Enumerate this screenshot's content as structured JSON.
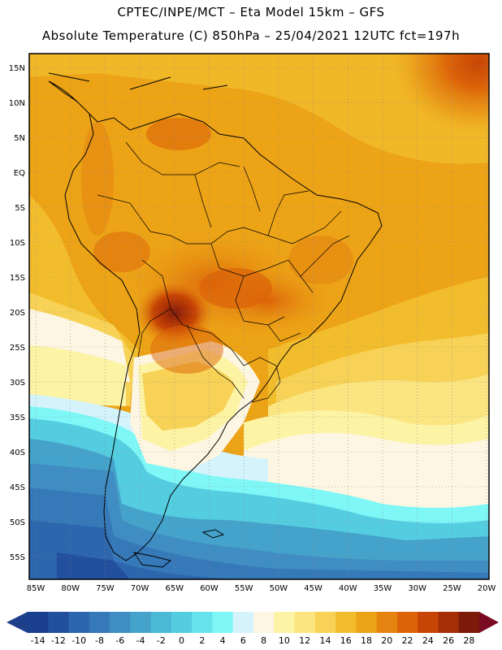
{
  "header": {
    "line1": "CPTEC/INPE/MCT –  Eta Model 15km – GFS",
    "line2": "Absolute Temperature (C) 850hPa – 25/04/2021 12UTC fct=197h"
  },
  "map": {
    "latitude_labels": [
      "15N",
      "10N",
      "5N",
      "EQ",
      "5S",
      "10S",
      "15S",
      "20S",
      "25S",
      "30S",
      "35S",
      "40S",
      "45S",
      "50S",
      "55S"
    ],
    "longitude_labels": [
      "85W",
      "80W",
      "75W",
      "70W",
      "65W",
      "60W",
      "55W",
      "50W",
      "45W",
      "40W",
      "35W",
      "30W",
      "25W",
      "20W"
    ],
    "region": "South America"
  },
  "colorbar": {
    "labels": [
      "-14",
      "-12",
      "-10",
      "-8",
      "-6",
      "-4",
      "-2",
      "0",
      "2",
      "4",
      "6",
      "8",
      "10",
      "12",
      "14",
      "16",
      "18",
      "20",
      "22",
      "24",
      "26",
      "28"
    ],
    "colors": [
      "#1b3f8f",
      "#23509e",
      "#2c66ad",
      "#3679b9",
      "#3f8dc3",
      "#45a3cb",
      "#4ab8d6",
      "#55cde0",
      "#66e3ec",
      "#7ff7f7",
      "#d4f3fb",
      "#fdf6e2",
      "#fdf3a4",
      "#fbe580",
      "#f7d257",
      "#f2bd2d",
      "#eca316",
      "#e58410",
      "#dc6308",
      "#c84605",
      "#a52e07",
      "#7d1a0a"
    ],
    "min_color": "#1e3f8c",
    "max_color": "#7a0a22"
  }
}
